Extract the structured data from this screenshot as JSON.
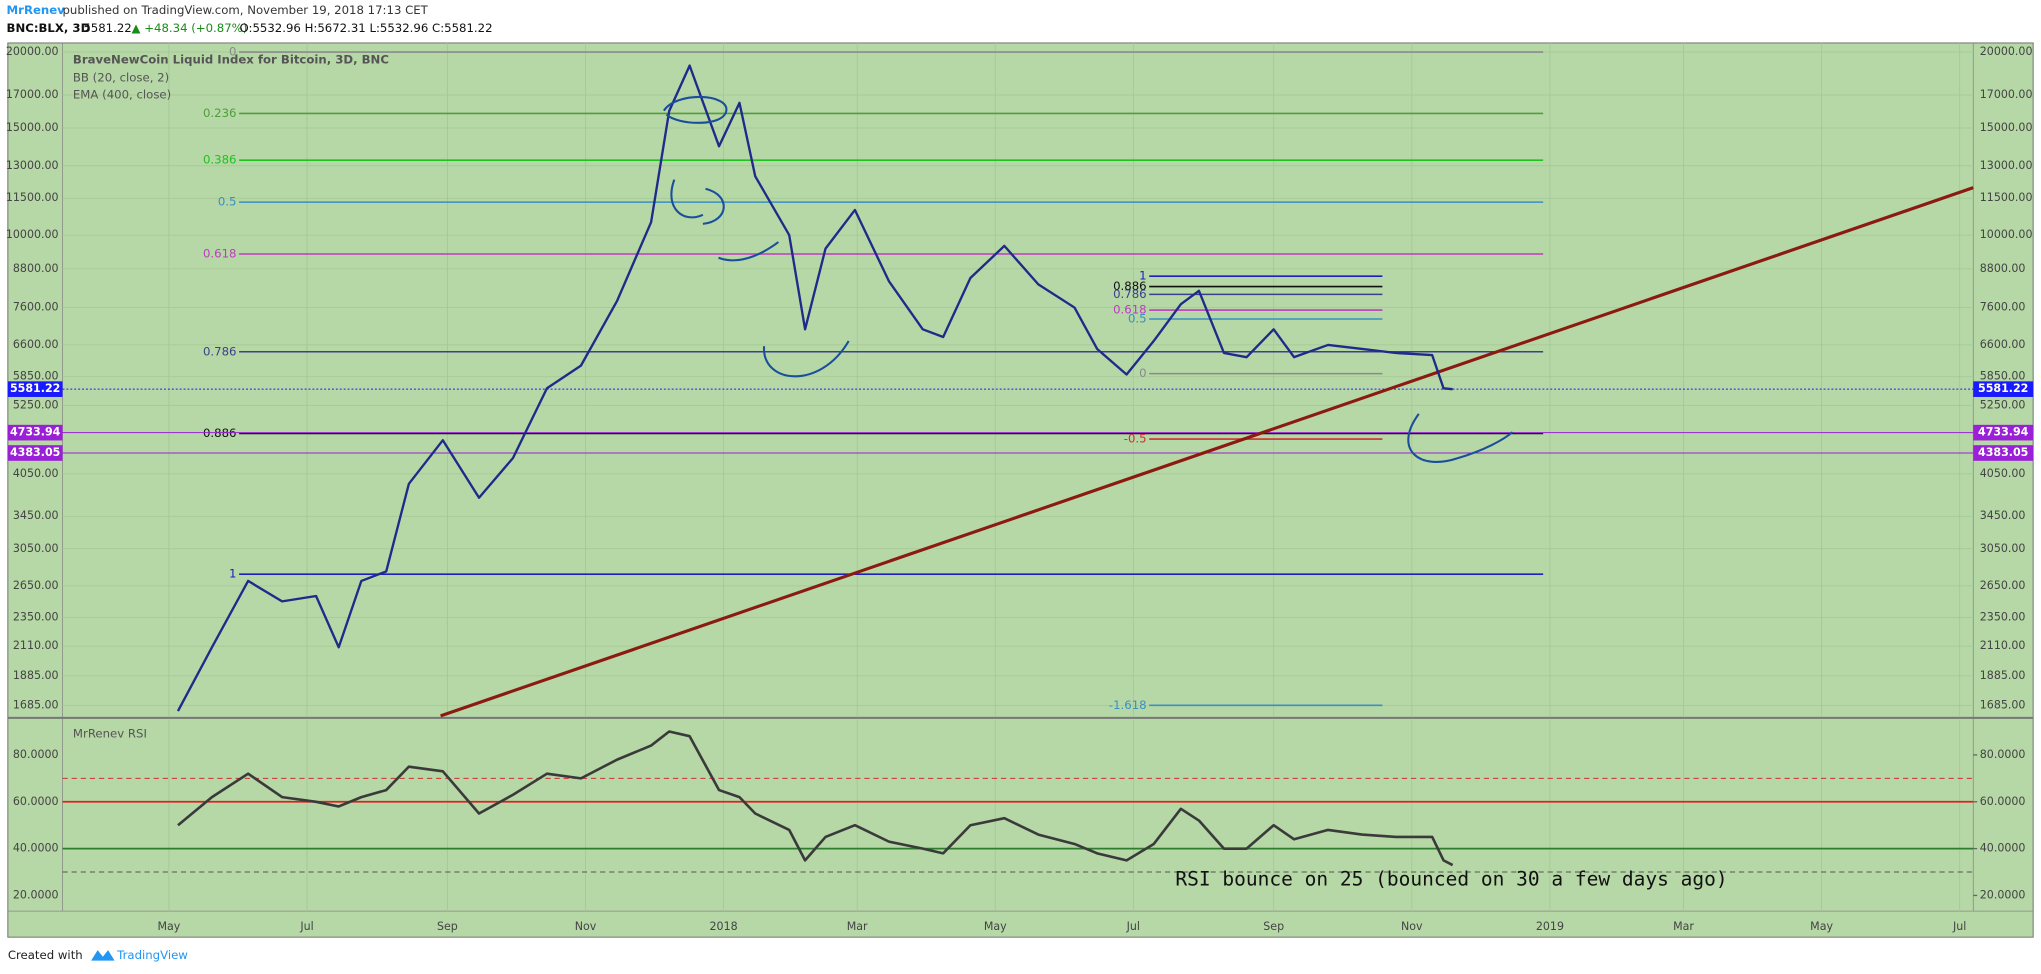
{
  "header": {
    "publisher": "MrRenev",
    "published": "published on TradingView.com, November 19, 2018 17:13 CET",
    "symbol": "BNC:BLX, 3D",
    "last": "5581.22",
    "change": "▲ +48.34 (+0.87%)",
    "ohlc": "O:5532.96 H:5672.31 L:5532.96 C:5581.22"
  },
  "chart_data": [
    {
      "type": "line",
      "title": "BraveNewCoin Liquid Index for Bitcoin, 3D, BNC",
      "indicators": [
        "BB (20, close, 2)",
        "EMA (400, close)"
      ],
      "log_scale": true,
      "grid": true,
      "color": "#1f2a8a",
      "x": [
        "2017-05-05",
        "2017-05-20",
        "2017-06-05",
        "2017-06-20",
        "2017-07-05",
        "2017-07-15",
        "2017-07-25",
        "2017-08-05",
        "2017-08-15",
        "2017-08-30",
        "2017-09-15",
        "2017-09-30",
        "2017-10-15",
        "2017-10-30",
        "2017-11-15",
        "2017-11-30",
        "2017-12-08",
        "2017-12-17",
        "2017-12-30",
        "2018-01-08",
        "2018-01-15",
        "2018-01-30",
        "2018-02-06",
        "2018-02-15",
        "2018-02-28",
        "2018-03-15",
        "2018-03-30",
        "2018-04-08",
        "2018-04-20",
        "2018-05-05",
        "2018-05-20",
        "2018-06-05",
        "2018-06-15",
        "2018-06-28",
        "2018-07-10",
        "2018-07-22",
        "2018-07-30",
        "2018-08-10",
        "2018-08-20",
        "2018-09-01",
        "2018-09-10",
        "2018-09-25",
        "2018-10-10",
        "2018-10-25",
        "2018-11-10",
        "2018-11-15",
        "2018-11-19"
      ],
      "values": [
        1650,
        2100,
        2700,
        2500,
        2550,
        2100,
        2700,
        2800,
        3900,
        4600,
        3700,
        4300,
        5600,
        6100,
        7800,
        10500,
        16000,
        19000,
        14000,
        16500,
        12500,
        10000,
        7000,
        9500,
        11000,
        8400,
        7000,
        6800,
        8500,
        9600,
        8300,
        7600,
        6500,
        5900,
        6700,
        7700,
        8100,
        6400,
        6300,
        7000,
        6300,
        6600,
        6500,
        6400,
        6350,
        5600,
        5581.22
      ],
      "xlim": [
        "2017-03-15",
        "2019-07-07"
      ],
      "ylim": [
        1620,
        20700
      ],
      "yticks": [
        {
          "value": 1685,
          "label": "1685.00"
        },
        {
          "value": 1885,
          "label": "1885.00"
        },
        {
          "value": 2110,
          "label": "2110.00"
        },
        {
          "value": 2350,
          "label": "2350.00"
        },
        {
          "value": 2650,
          "label": "2650.00"
        },
        {
          "value": 3050,
          "label": "3050.00"
        },
        {
          "value": 3450,
          "label": "3450.00"
        },
        {
          "value": 4050,
          "label": "4050.00"
        },
        {
          "value": 5250,
          "label": "5250.00"
        },
        {
          "value": 5850,
          "label": "5850.00"
        },
        {
          "value": 6600,
          "label": "6600.00"
        },
        {
          "value": 7600,
          "label": "7600.00"
        },
        {
          "value": 8800,
          "label": "8800.00"
        },
        {
          "value": 10000,
          "label": "10000.00"
        },
        {
          "value": 11500,
          "label": "11500.00"
        },
        {
          "value": 13000,
          "label": "13000.00"
        },
        {
          "value": 15000,
          "label": "15000.00"
        },
        {
          "value": 17000,
          "label": "17000.00"
        },
        {
          "value": 20000,
          "label": "20000.00"
        }
      ],
      "price_lines": [
        {
          "value": 5581.22,
          "color": "#1a1aff"
        },
        {
          "value": 4733.94,
          "color": "#9b1fd6"
        },
        {
          "value": 4383.05,
          "color": "#9b1fd6"
        }
      ],
      "fib_levels": [
        {
          "level": 0,
          "price": 20000,
          "color": "#8a8a8a"
        },
        {
          "level": 0.236,
          "price": 15850,
          "color": "#4f9f3a"
        },
        {
          "level": 0.386,
          "price": 13280,
          "color": "#1fc21f"
        },
        {
          "level": 0.5,
          "price": 11330,
          "color": "#3a8fc4"
        },
        {
          "level": 0.618,
          "price": 9310,
          "color": "#c03bc0"
        },
        {
          "level": 0.786,
          "price": 6430,
          "color": "#3c3f8c"
        },
        {
          "level": 0.886,
          "price": 4720,
          "color": "#111111"
        },
        {
          "level": 1,
          "price": 2770,
          "color": "#2020c0"
        }
      ],
      "fib_range": [
        "2017-06-01",
        "2018-12-29"
      ],
      "fib2_levels": [
        {
          "level": 1,
          "price": 8560,
          "color": "#2020c0"
        },
        {
          "level": 0.886,
          "price": 8230,
          "color": "#111111"
        },
        {
          "level": 0.786,
          "price": 7990,
          "color": "#3c3f8c"
        },
        {
          "level": 0.618,
          "price": 7530,
          "color": "#c03bc0"
        },
        {
          "level": 0.5,
          "price": 7280,
          "color": "#3a8fc4"
        },
        {
          "level": 0,
          "price": 5920,
          "color": "#8a8a8a"
        },
        {
          "level": -0.5,
          "price": 4620,
          "color": "#d03030"
        },
        {
          "level": -1.618,
          "price": 1686,
          "color": "#3a8fc4"
        }
      ],
      "fib2_range": [
        "2018-07-08",
        "2018-10-19"
      ],
      "trendline": {
        "x": [
          "2017-08-29",
          "2019-07-07"
        ],
        "values": [
          1620,
          11970
        ],
        "color": "#8b1a10"
      }
    },
    {
      "type": "line",
      "title": "MrRenev RSI",
      "color": "#3a3a3a",
      "x": [
        "2017-05-05",
        "2017-05-20",
        "2017-06-05",
        "2017-06-20",
        "2017-07-05",
        "2017-07-15",
        "2017-07-25",
        "2017-08-05",
        "2017-08-15",
        "2017-08-30",
        "2017-09-15",
        "2017-09-30",
        "2017-10-15",
        "2017-10-30",
        "2017-11-15",
        "2017-11-30",
        "2017-12-08",
        "2017-12-17",
        "2017-12-30",
        "2018-01-08",
        "2018-01-15",
        "2018-01-30",
        "2018-02-06",
        "2018-02-15",
        "2018-02-28",
        "2018-03-15",
        "2018-03-30",
        "2018-04-08",
        "2018-04-20",
        "2018-05-05",
        "2018-05-20",
        "2018-06-05",
        "2018-06-15",
        "2018-06-28",
        "2018-07-10",
        "2018-07-22",
        "2018-07-30",
        "2018-08-10",
        "2018-08-20",
        "2018-09-01",
        "2018-09-10",
        "2018-09-25",
        "2018-10-10",
        "2018-10-25",
        "2018-11-10",
        "2018-11-15",
        "2018-11-19"
      ],
      "values": [
        50,
        62,
        72,
        62,
        60,
        58,
        62,
        65,
        75,
        73,
        55,
        63,
        72,
        70,
        78,
        84,
        90,
        88,
        65,
        62,
        55,
        48,
        35,
        45,
        50,
        43,
        40,
        38,
        50,
        53,
        46,
        42,
        38,
        35,
        42,
        57,
        52,
        40,
        40,
        50,
        44,
        48,
        46,
        45,
        45,
        35,
        33
      ],
      "xlim": [
        "2017-03-15",
        "2019-07-07"
      ],
      "ylim": [
        13.3,
        95
      ],
      "yticks": [
        {
          "value": 20,
          "label": "20.0000"
        },
        {
          "value": 40,
          "label": "40.0000"
        },
        {
          "value": 60,
          "label": "60.0000"
        },
        {
          "value": 80,
          "label": "80.0000"
        }
      ],
      "levels": [
        {
          "value": 70,
          "color": "#d03030",
          "dash": true
        },
        {
          "value": 60,
          "color": "#e02020",
          "dash": false
        },
        {
          "value": 40,
          "color": "#2e7d2e",
          "dash": false
        },
        {
          "value": 30,
          "color": "#555555",
          "dash": true
        }
      ],
      "annotation": "RSI bounce on 25 (bounced on 30 a few days ago)",
      "xticks": [
        {
          "value": "2017-05-01",
          "label": "May"
        },
        {
          "value": "2017-07-01",
          "label": "Jul"
        },
        {
          "value": "2017-09-01",
          "label": "Sep"
        },
        {
          "value": "2017-11-01",
          "label": "Nov"
        },
        {
          "value": "2018-01-01",
          "label": "2018"
        },
        {
          "value": "2018-03-01",
          "label": "Mar"
        },
        {
          "value": "2018-05-01",
          "label": "May"
        },
        {
          "value": "2018-07-01",
          "label": "Jul"
        },
        {
          "value": "2018-09-01",
          "label": "Sep"
        },
        {
          "value": "2018-11-01",
          "label": "Nov"
        },
        {
          "value": "2019-01-01",
          "label": "2019"
        },
        {
          "value": "2019-03-01",
          "label": "Mar"
        },
        {
          "value": "2019-05-01",
          "label": "May"
        },
        {
          "value": "2019-07-01",
          "label": "Jul"
        }
      ]
    }
  ],
  "footer": {
    "created": "Created with",
    "brand": "TradingView"
  }
}
